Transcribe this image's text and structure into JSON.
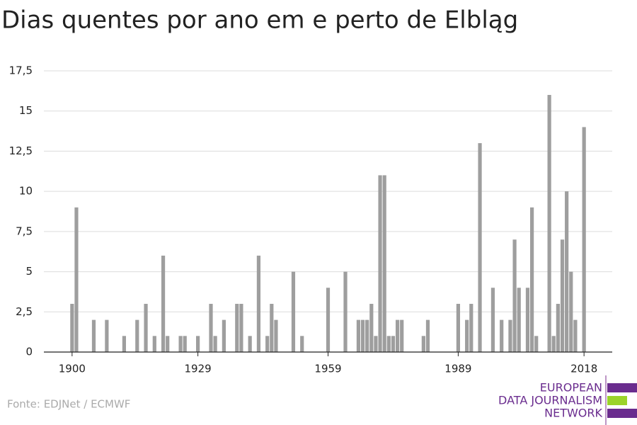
{
  "chart_data": {
    "type": "bar",
    "title": "Dias quentes por ano em e perto de Elbląg",
    "source": "Fonte: EDJNet / ECMWF",
    "logo": [
      "EUROPEAN",
      "DATA JOURNALISM",
      "NETWORK"
    ],
    "color": "#9e9e9e",
    "x": [
      1900,
      1901,
      1902,
      1903,
      1904,
      1905,
      1906,
      1907,
      1908,
      1909,
      1910,
      1911,
      1912,
      1913,
      1914,
      1915,
      1916,
      1917,
      1918,
      1919,
      1920,
      1921,
      1922,
      1923,
      1924,
      1925,
      1926,
      1927,
      1928,
      1929,
      1930,
      1931,
      1932,
      1933,
      1934,
      1935,
      1936,
      1937,
      1938,
      1939,
      1940,
      1941,
      1942,
      1943,
      1944,
      1945,
      1946,
      1947,
      1948,
      1949,
      1950,
      1951,
      1952,
      1953,
      1954,
      1955,
      1956,
      1957,
      1958,
      1959,
      1960,
      1961,
      1962,
      1963,
      1964,
      1965,
      1966,
      1967,
      1968,
      1969,
      1970,
      1971,
      1972,
      1973,
      1974,
      1975,
      1976,
      1977,
      1978,
      1979,
      1980,
      1981,
      1982,
      1983,
      1984,
      1985,
      1986,
      1987,
      1988,
      1989,
      1990,
      1991,
      1992,
      1993,
      1994,
      1995,
      1996,
      1997,
      1998,
      1999,
      2000,
      2001,
      2002,
      2003,
      2004,
      2005,
      2006,
      2007,
      2008,
      2009,
      2010,
      2011,
      2012,
      2013,
      2014,
      2015,
      2016,
      2017,
      2018
    ],
    "values": [
      3,
      9,
      0,
      0,
      0,
      2,
      0,
      0,
      2,
      0,
      0,
      0,
      1,
      0,
      0,
      2,
      0,
      3,
      0,
      1,
      0,
      6,
      1,
      0,
      0,
      1,
      1,
      0,
      0,
      1,
      0,
      0,
      3,
      1,
      0,
      2,
      0,
      0,
      3,
      3,
      0,
      1,
      0,
      6,
      0,
      1,
      3,
      2,
      0,
      0,
      0,
      5,
      0,
      1,
      0,
      0,
      0,
      0,
      0,
      4,
      0,
      0,
      0,
      5,
      0,
      0,
      2,
      2,
      2,
      3,
      1,
      11,
      11,
      1,
      1,
      2,
      2,
      0,
      0,
      0,
      0,
      1,
      2,
      0,
      0,
      0,
      0,
      0,
      0,
      3,
      0,
      2,
      3,
      0,
      13,
      0,
      0,
      4,
      0,
      2,
      0,
      2,
      7,
      4,
      0,
      4,
      9,
      1,
      0,
      0,
      16,
      1,
      3,
      7,
      10,
      5,
      2,
      0,
      14
    ],
    "xlim": [
      1893.5,
      2024.5
    ],
    "xticks": [
      1900,
      1929,
      1959,
      1989,
      2018
    ],
    "ylim": [
      0,
      17.5
    ],
    "yticks": [
      0,
      {
        "value": 2.5,
        "label": "2,5"
      },
      5,
      {
        "value": 7.5,
        "label": "7,5"
      },
      10,
      {
        "value": 12.5,
        "label": "12,5"
      },
      15,
      {
        "value": 17.5,
        "label": "17,5"
      }
    ],
    "grid": true
  }
}
